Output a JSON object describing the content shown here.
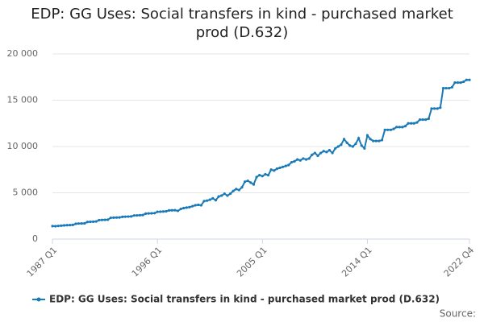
{
  "chart_data": {
    "type": "line",
    "title": "EDP: GG Uses: Social transfers in kind - purchased market prod (D.632)",
    "source": "Source:",
    "categories": [
      "1987 Q1",
      null,
      null,
      null,
      null,
      null,
      null,
      null,
      null,
      null,
      null,
      null,
      null,
      null,
      null,
      null,
      null,
      null,
      null,
      null,
      null,
      null,
      null,
      null,
      null,
      null,
      null,
      null,
      null,
      null,
      null,
      null,
      null,
      null,
      null,
      null,
      "1996 Q1",
      null,
      null,
      null,
      null,
      null,
      null,
      null,
      null,
      null,
      null,
      null,
      null,
      null,
      null,
      null,
      null,
      null,
      null,
      null,
      null,
      null,
      null,
      null,
      null,
      null,
      null,
      null,
      null,
      null,
      null,
      null,
      null,
      null,
      null,
      null,
      "2005 Q1",
      null,
      null,
      null,
      null,
      null,
      null,
      null,
      null,
      null,
      null,
      null,
      null,
      null,
      null,
      null,
      null,
      null,
      null,
      null,
      null,
      null,
      null,
      null,
      null,
      null,
      null,
      null,
      null,
      null,
      null,
      null,
      null,
      null,
      null,
      null,
      "2014 Q1",
      null,
      null,
      null,
      null,
      null,
      null,
      null,
      null,
      null,
      null,
      null,
      null,
      null,
      null,
      null,
      null,
      null,
      null,
      null,
      null,
      null,
      null,
      null,
      null,
      null,
      null,
      null,
      null,
      null,
      null,
      null,
      null,
      null,
      null,
      "2022 Q4"
    ],
    "series": [
      {
        "name": "EDP: GG Uses: Social transfers in kind - purchased market prod (D.632)",
        "color": "#1a7ab8",
        "values": [
          1400,
          1390,
          1420,
          1450,
          1480,
          1500,
          1510,
          1530,
          1650,
          1680,
          1690,
          1700,
          1850,
          1870,
          1880,
          1900,
          2050,
          2070,
          2080,
          2100,
          2300,
          2320,
          2330,
          2340,
          2400,
          2420,
          2430,
          2450,
          2550,
          2560,
          2580,
          2600,
          2750,
          2770,
          2780,
          2800,
          2950,
          2960,
          2980,
          3000,
          3100,
          3110,
          3120,
          3050,
          3250,
          3350,
          3400,
          3450,
          3550,
          3650,
          3700,
          3650,
          4100,
          4150,
          4250,
          4400,
          4200,
          4600,
          4700,
          4900,
          4700,
          4900,
          5200,
          5400,
          5300,
          5600,
          6200,
          6300,
          6100,
          5900,
          6700,
          6900,
          6800,
          7000,
          6900,
          7500,
          7400,
          7600,
          7700,
          7800,
          7900,
          8000,
          8300,
          8400,
          8600,
          8500,
          8700,
          8600,
          8700,
          9100,
          9300,
          9000,
          9300,
          9500,
          9400,
          9600,
          9300,
          9800,
          10000,
          10200,
          10800,
          10400,
          10100,
          10000,
          10300,
          10900,
          10100,
          9800,
          11200,
          10800,
          10600,
          10600,
          10600,
          10700,
          11800,
          11800,
          11800,
          11900,
          12100,
          12100,
          12100,
          12200,
          12500,
          12500,
          12500,
          12600,
          12900,
          12900,
          12900,
          13000,
          14100,
          14100,
          14100,
          14200,
          16300,
          16300,
          16300,
          16400,
          16900,
          16900,
          16900,
          17000,
          17200,
          17200
        ]
      }
    ],
    "ylim": [
      0,
      20000
    ],
    "yticks": [
      0,
      {
        "value": 5000,
        "label": "5 000"
      },
      {
        "value": 10000,
        "label": "10 000"
      },
      {
        "value": 15000,
        "label": "15 000"
      },
      {
        "value": 20000,
        "label": "20 000"
      }
    ],
    "grid": true,
    "legend": "bottom"
  }
}
